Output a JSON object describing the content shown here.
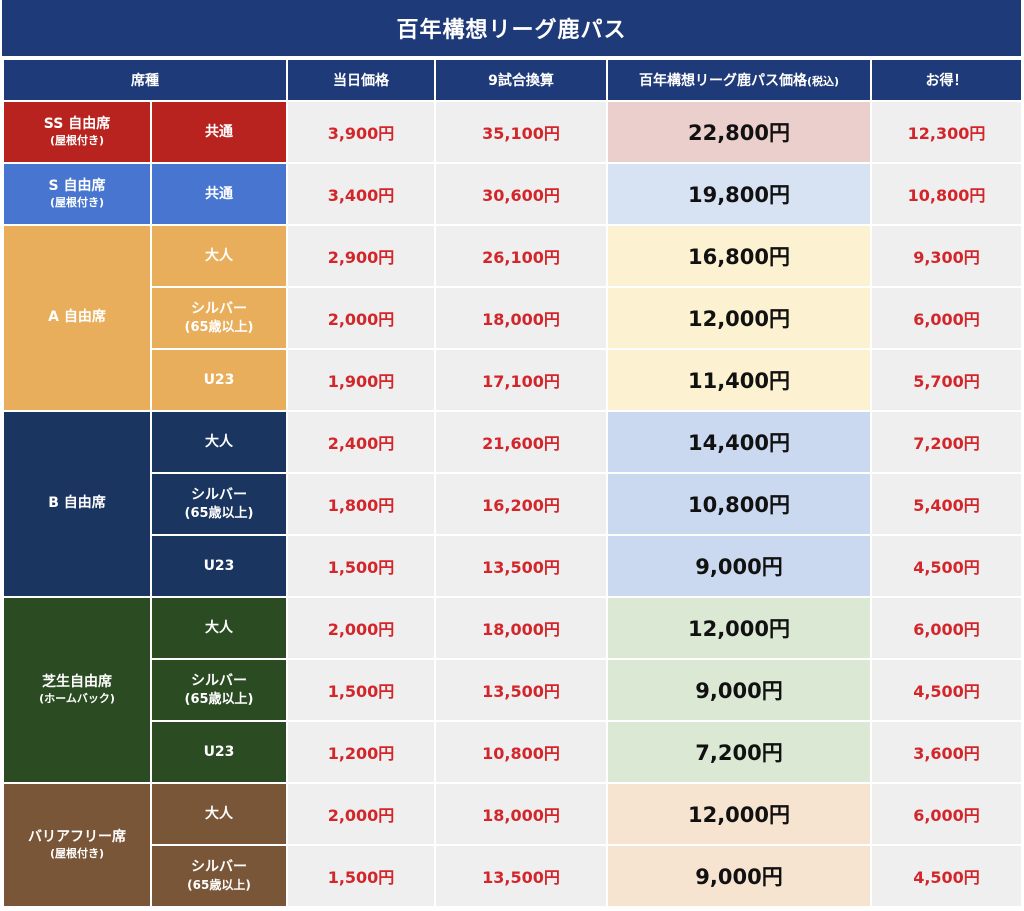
{
  "title": "百年構想リーグ鹿パス",
  "headers": {
    "seat": "席種",
    "day_price": "当日価格",
    "nine_games": "9試合換算",
    "pass_price": "百年構想リーグ鹿パス価格",
    "pass_price_note": "(税込)",
    "savings": "お得！"
  },
  "colors": {
    "header_bg": "#1f3a78",
    "price_red": "#d3262b"
  },
  "categories": [
    {
      "name": "SS 自由席",
      "note": "(屋根付き)",
      "rows": [
        {
          "type": "共通",
          "type_note": "",
          "day": "3,900円",
          "nine": "35,100円",
          "pass": "22,800円",
          "save": "12,300円"
        }
      ]
    },
    {
      "name": "S 自由席",
      "note": "(屋根付き)",
      "rows": [
        {
          "type": "共通",
          "type_note": "",
          "day": "3,400円",
          "nine": "30,600円",
          "pass": "19,800円",
          "save": "10,800円"
        }
      ]
    },
    {
      "name": "A 自由席",
      "note": "",
      "rows": [
        {
          "type": "大人",
          "type_note": "",
          "day": "2,900円",
          "nine": "26,100円",
          "pass": "16,800円",
          "save": "9,300円"
        },
        {
          "type": "シルバー",
          "type_note": "(65歳以上)",
          "day": "2,000円",
          "nine": "18,000円",
          "pass": "12,000円",
          "save": "6,000円"
        },
        {
          "type": "U23",
          "type_note": "",
          "day": "1,900円",
          "nine": "17,100円",
          "pass": "11,400円",
          "save": "5,700円"
        }
      ]
    },
    {
      "name": "B 自由席",
      "note": "",
      "rows": [
        {
          "type": "大人",
          "type_note": "",
          "day": "2,400円",
          "nine": "21,600円",
          "pass": "14,400円",
          "save": "7,200円"
        },
        {
          "type": "シルバー",
          "type_note": "(65歳以上)",
          "day": "1,800円",
          "nine": "16,200円",
          "pass": "10,800円",
          "save": "5,400円"
        },
        {
          "type": "U23",
          "type_note": "",
          "day": "1,500円",
          "nine": "13,500円",
          "pass": "9,000円",
          "save": "4,500円"
        }
      ]
    },
    {
      "name": "芝生自由席",
      "note": "(ホームバック)",
      "rows": [
        {
          "type": "大人",
          "type_note": "",
          "day": "2,000円",
          "nine": "18,000円",
          "pass": "12,000円",
          "save": "6,000円"
        },
        {
          "type": "シルバー",
          "type_note": "(65歳以上)",
          "day": "1,500円",
          "nine": "13,500円",
          "pass": "9,000円",
          "save": "4,500円"
        },
        {
          "type": "U23",
          "type_note": "",
          "day": "1,200円",
          "nine": "10,800円",
          "pass": "7,200円",
          "save": "3,600円"
        }
      ]
    },
    {
      "name": "バリアフリー席",
      "note": "(屋根付き)",
      "rows": [
        {
          "type": "大人",
          "type_note": "",
          "day": "2,000円",
          "nine": "18,000円",
          "pass": "12,000円",
          "save": "6,000円"
        },
        {
          "type": "シルバー",
          "type_note": "(65歳以上)",
          "day": "1,500円",
          "nine": "13,500円",
          "pass": "9,000円",
          "save": "4,500円"
        }
      ]
    }
  ]
}
